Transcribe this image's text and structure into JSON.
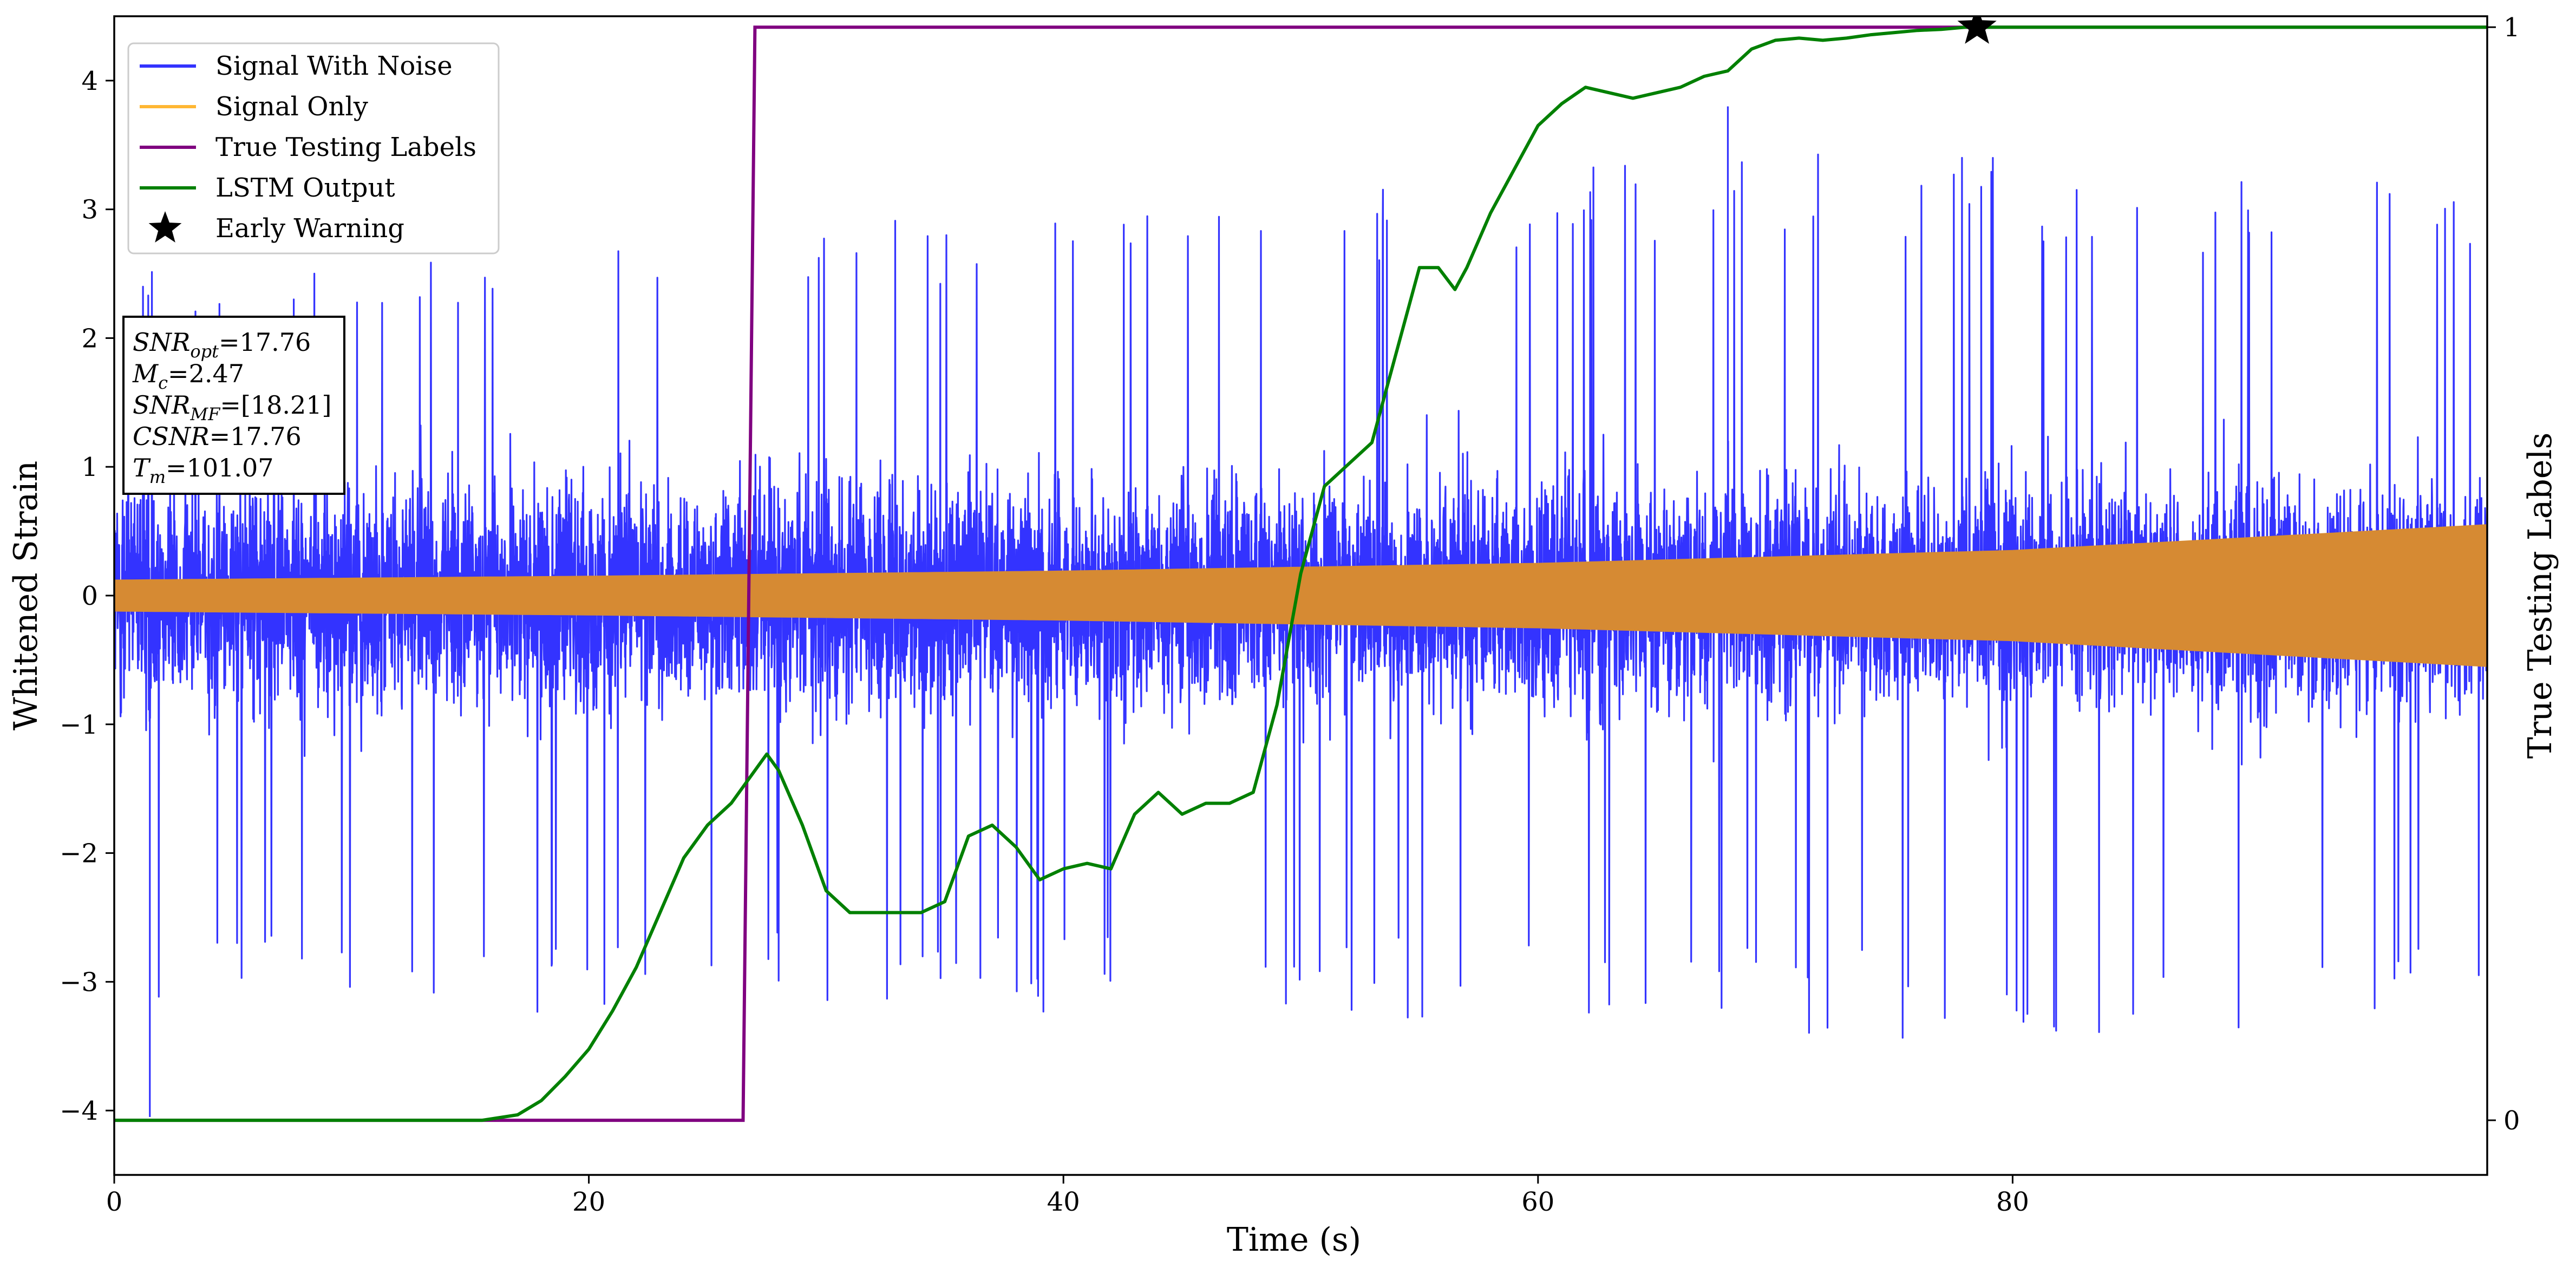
{
  "chart_data": {
    "type": "line",
    "xlabel": "Time (s)",
    "ylabel": "Whitened Strain",
    "ylabel_right": "True Testing Labels",
    "xlim": [
      0,
      100
    ],
    "ylim": [
      -4.5,
      4.5
    ],
    "ylim_right": [
      -0.05,
      1.01
    ],
    "x_ticks": [
      0,
      20,
      40,
      60,
      80
    ],
    "y_ticks": [
      -4,
      -3,
      -2,
      -1,
      0,
      1,
      2,
      3,
      4
    ],
    "y_ticks_right": [
      0,
      1
    ],
    "grid": false,
    "legend_position": "upper-left",
    "legend": [
      {
        "label": "Signal With Noise",
        "color": "#3333ff",
        "marker": "line"
      },
      {
        "label": "Signal Only",
        "color": "#ffb733",
        "marker": "line"
      },
      {
        "label": "True Testing Labels",
        "color": "#800080",
        "marker": "line"
      },
      {
        "label": "LSTM Output",
        "color": "#008000",
        "marker": "line"
      },
      {
        "label": "Early Warning",
        "color": "#000000",
        "marker": "star"
      }
    ],
    "annotation": [
      {
        "base": "SNR",
        "sub": "opt",
        "value": "=17.76"
      },
      {
        "base": "M",
        "sub": "c",
        "value": "=2.47"
      },
      {
        "base": "SNR",
        "sub": "MF",
        "value": "=[18.21]"
      },
      {
        "base": "CSNR",
        "sub": "",
        "value": "=17.76"
      },
      {
        "base": "T",
        "sub": "m",
        "value": "=101.07"
      }
    ],
    "series": [
      {
        "name": "Signal With Noise",
        "axis": "left",
        "color": "#3333ff",
        "description_envelope": {
          "x": [
            0,
            10,
            20,
            30,
            40,
            50,
            60,
            70,
            80,
            90,
            100
          ],
          "upper": [
            2.6,
            2.7,
            2.8,
            3.0,
            3.0,
            3.2,
            3.3,
            3.5,
            3.4,
            3.3,
            3.2
          ],
          "lower": [
            -3.3,
            -3.2,
            -3.4,
            -3.2,
            -3.3,
            -3.2,
            -3.4,
            -3.4,
            -3.5,
            -3.4,
            -3.2
          ],
          "min_point": [
            1.5,
            -4.05
          ],
          "max_point": [
            68.0,
            3.8
          ]
        }
      },
      {
        "name": "Signal Only",
        "axis": "left",
        "color": "#d68a33",
        "x": [
          0,
          20,
          40,
          60,
          80,
          100
        ],
        "amplitude": [
          0.12,
          0.15,
          0.19,
          0.25,
          0.35,
          0.55
        ]
      },
      {
        "name": "True Testing Labels",
        "axis": "right",
        "color": "#800080",
        "x": [
          0,
          26.5,
          27.0,
          100
        ],
        "y": [
          0,
          0,
          1,
          1
        ]
      },
      {
        "name": "LSTM Output",
        "axis": "right",
        "color": "#008000",
        "x": [
          0,
          15.5,
          17,
          18,
          19,
          20,
          21,
          22,
          23,
          24,
          25,
          26,
          27,
          27.5,
          28,
          29,
          30,
          31,
          32,
          33,
          34,
          35,
          36,
          37,
          38,
          39,
          40,
          41,
          42,
          43,
          44,
          45,
          46,
          47,
          48,
          49,
          50,
          51,
          52,
          53,
          54,
          55,
          55.8,
          56.5,
          57,
          58,
          59,
          60,
          61,
          62,
          63,
          64,
          65,
          66,
          67,
          68,
          69,
          70,
          71,
          72,
          73,
          74,
          75,
          76,
          77,
          78,
          80,
          85,
          90,
          100
        ],
        "y": [
          0,
          0,
          0.005,
          0.018,
          0.04,
          0.065,
          0.1,
          0.14,
          0.19,
          0.24,
          0.27,
          0.29,
          0.32,
          0.335,
          0.32,
          0.27,
          0.21,
          0.19,
          0.19,
          0.19,
          0.19,
          0.2,
          0.26,
          0.27,
          0.25,
          0.22,
          0.23,
          0.235,
          0.23,
          0.28,
          0.3,
          0.28,
          0.29,
          0.29,
          0.3,
          0.38,
          0.5,
          0.58,
          0.6,
          0.62,
          0.7,
          0.78,
          0.78,
          0.76,
          0.78,
          0.83,
          0.87,
          0.91,
          0.93,
          0.945,
          0.94,
          0.935,
          0.94,
          0.945,
          0.955,
          0.96,
          0.98,
          0.988,
          0.99,
          0.988,
          0.99,
          0.993,
          0.995,
          0.997,
          0.998,
          1.0,
          1.0,
          1.0,
          1.0,
          1.0
        ]
      },
      {
        "name": "Early Warning",
        "axis": "right",
        "color": "#000000",
        "marker": "star",
        "x": [
          78.5
        ],
        "y": [
          1.0
        ]
      }
    ]
  }
}
